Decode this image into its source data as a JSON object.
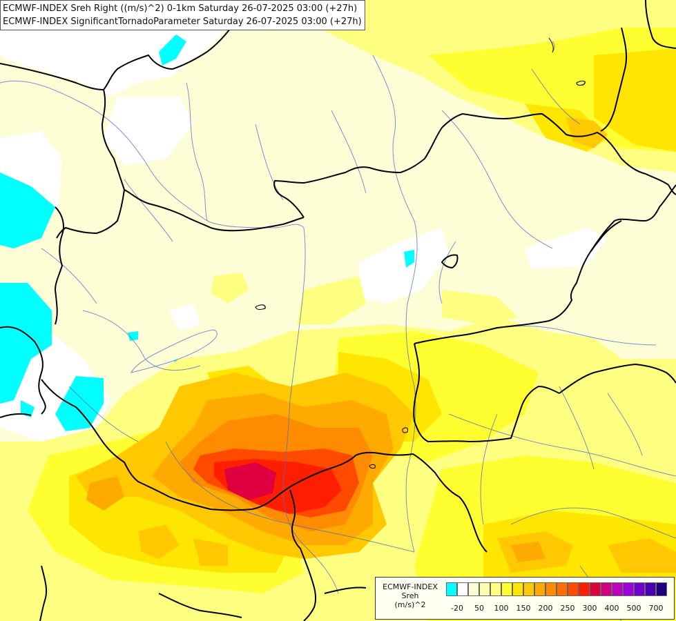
{
  "header": {
    "line1": "ECMWF-INDEX Sreh Right ((m/s)^2) 0-1km Saturday 26-07-2025 03:00 (+27h)",
    "line2": "ECMWF-INDEX SignificantTornadoParameter Saturday 26-07-2025 03:00 (+27h)"
  },
  "legend": {
    "line1": "ECMWF-INDEX",
    "line2": "Sreh",
    "line3": "(m/s)^2",
    "colors": [
      "#00ffff",
      "#ffffff",
      "#fefed6",
      "#fefeb0",
      "#fefe80",
      "#fefe30",
      "#ffe600",
      "#ffc800",
      "#ffaa00",
      "#ff8c00",
      "#ff6e00",
      "#ff4a00",
      "#ff1e00",
      "#e00040",
      "#d00080",
      "#c000c0",
      "#a000e0",
      "#7000d0",
      "#4800b0",
      "#1e0080"
    ],
    "ticks": [
      {
        "label": "-20",
        "index": 1
      },
      {
        "label": "50",
        "index": 3
      },
      {
        "label": "100",
        "index": 5
      },
      {
        "label": "150",
        "index": 7
      },
      {
        "label": "200",
        "index": 9
      },
      {
        "label": "250",
        "index": 11
      },
      {
        "label": "300",
        "index": 13
      },
      {
        "label": "400",
        "index": 15
      },
      {
        "label": "500",
        "index": 17
      },
      {
        "label": "700",
        "index": 19
      }
    ]
  }
}
